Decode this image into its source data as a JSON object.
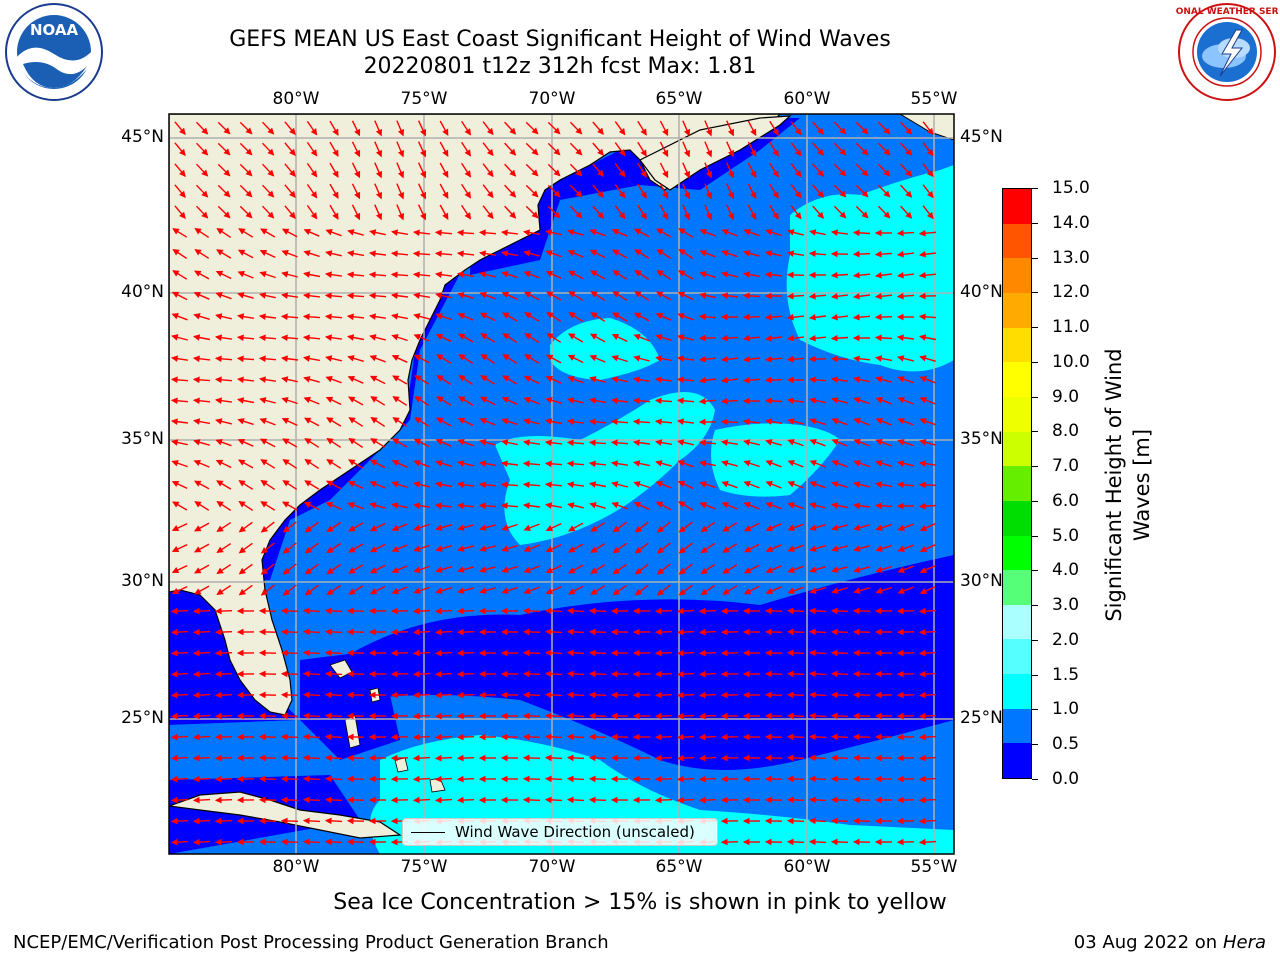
{
  "header": {
    "title_line1": "GEFS MEAN US East Coast Significant Height of Wind Waves",
    "title_line2": "20220801 t12z 312h fcst    Max: 1.81"
  },
  "logos": {
    "noaa_text": "NOAA",
    "noaa_ring_text": "NATIONAL OCEANIC AND ATMOSPHERIC ADMINISTRATION · U.S. DEPARTMENT OF COMMERCE",
    "nws_ring_text": "NATIONAL WEATHER SERVICE"
  },
  "map": {
    "lon_ticks": [
      "80°W",
      "75°W",
      "70°W",
      "65°W",
      "60°W",
      "55°W"
    ],
    "lat_ticks": [
      "45°N",
      "40°N",
      "35°N",
      "30°N",
      "25°N"
    ],
    "colors": {
      "land": "#efefdc",
      "level_0_0.5": "#0000ff",
      "level_0.5_1.0": "#0077ff",
      "level_1.0_1.5": "#00ffff",
      "arrow": "#ff0000",
      "grid": "#b0b0b0"
    }
  },
  "colorbar": {
    "label": "Significant Height of Wind Waves [m]",
    "levels": [
      "0.0",
      "0.5",
      "1.0",
      "1.5",
      "2.0",
      "3.0",
      "4.0",
      "5.0",
      "6.0",
      "7.0",
      "8.0",
      "9.0",
      "10.0",
      "11.0",
      "12.0",
      "13.0",
      "14.0",
      "15.0"
    ],
    "colors": [
      "#0000ff",
      "#0077ff",
      "#00ffff",
      "#55ffff",
      "#aaffff",
      "#55ff77",
      "#00ff00",
      "#00dd00",
      "#66ee00",
      "#ccff00",
      "#eeff00",
      "#ffff00",
      "#ffdd00",
      "#ffaa00",
      "#ff8800",
      "#ff5500",
      "#ff0000"
    ]
  },
  "legend": {
    "label": "Wind Wave Direction (unscaled)"
  },
  "notes": {
    "sea_ice": "Sea Ice Concentration > 15% is shown in pink to yellow"
  },
  "footer": {
    "left": "NCEP/EMC/Verification Post Processing Product Generation Branch",
    "date": "03 Aug 2022 on",
    "machine": "Hera"
  }
}
